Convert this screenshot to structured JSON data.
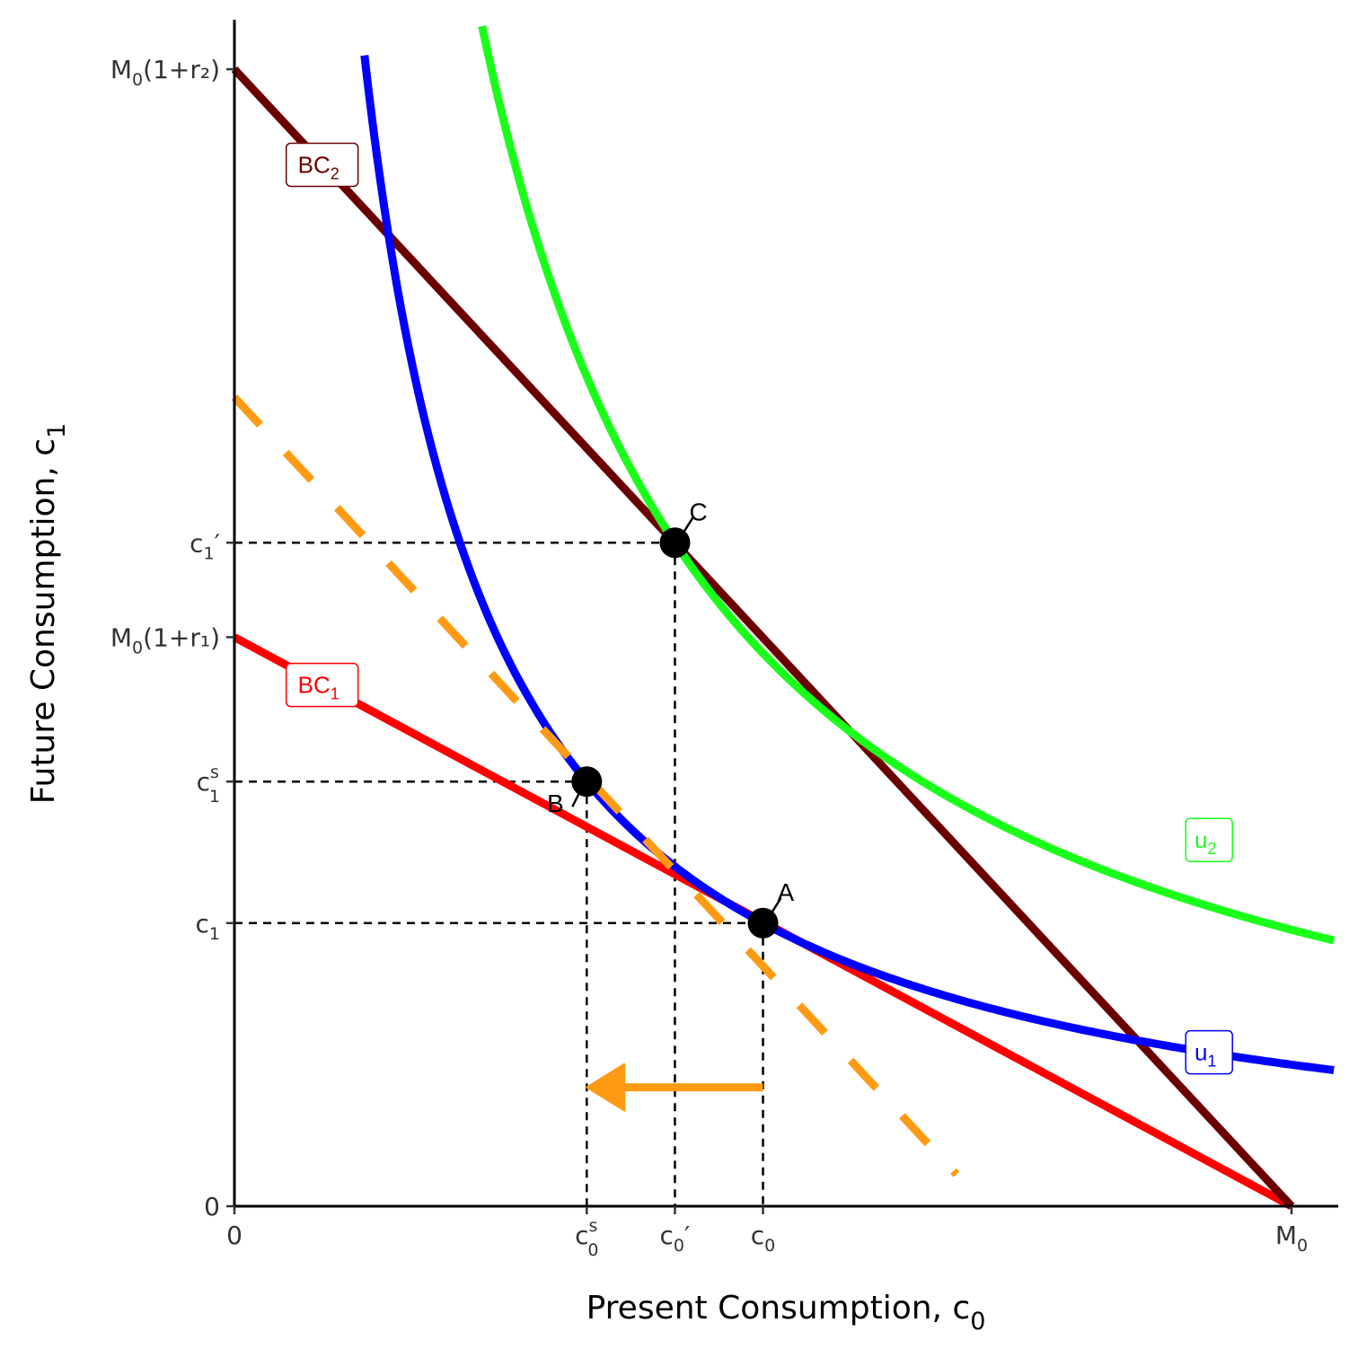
{
  "chart_data": {
    "type": "line",
    "title": "",
    "xlabel": {
      "main": "Present Consumption, c",
      "sub": "0"
    },
    "ylabel": {
      "main": "Future Consumption, c",
      "sub": "1"
    },
    "xlim": [
      0,
      100
    ],
    "ylim": [
      0,
      108
    ],
    "x_ticks": [
      {
        "value": 0,
        "main": "0",
        "sub": "",
        "sup": "",
        "post": ""
      },
      {
        "value": 33.33,
        "main": "c",
        "sub": "0",
        "sup": "s",
        "post": ""
      },
      {
        "value": 41.67,
        "main": "c",
        "sub": "0",
        "sup": "",
        "post": "′"
      },
      {
        "value": 50,
        "main": "c",
        "sub": "0",
        "sup": "",
        "post": ""
      },
      {
        "value": 100,
        "main": "M",
        "sub": "0",
        "sup": "",
        "post": ""
      }
    ],
    "y_ticks": [
      {
        "value": 0,
        "main": "0",
        "sub": "",
        "sup": "",
        "post": ""
      },
      {
        "value": 26.67,
        "main": "c",
        "sub": "1",
        "sup": "",
        "post": ""
      },
      {
        "value": 40,
        "main": "c",
        "sub": "1",
        "sup": "s",
        "post": ""
      },
      {
        "value": 53.6,
        "main": "M",
        "sub": "0",
        "sup": "",
        "post": "(1+r₁)"
      },
      {
        "value": 62.5,
        "main": "c",
        "sub": "1",
        "sup": "",
        "post": "′"
      },
      {
        "value": 107.1,
        "main": "M",
        "sub": "0",
        "sup": "",
        "post": "(1+r₂)"
      }
    ],
    "series": [
      {
        "name": "BC1",
        "color": "#ff0000",
        "points": [
          [
            0,
            53.6
          ],
          [
            100,
            0
          ]
        ]
      },
      {
        "name": "BC2",
        "color": "#6b0000",
        "points": [
          [
            0,
            107.1
          ],
          [
            100,
            0
          ]
        ]
      },
      {
        "name": "u1",
        "color": "#0000ff",
        "function": "1333.33/x",
        "domain": [
          12.3,
          104
        ]
      },
      {
        "name": "u2",
        "color": "#1aff1a",
        "function": "2604.2/x",
        "domain": [
          16.5,
          104
        ]
      },
      {
        "name": "",
        "color": "#ff9a13",
        "style": "dashed",
        "points": [
          [
            0,
            76.2
          ],
          [
            68.3,
            3
          ]
        ]
      }
    ],
    "points": [
      {
        "label": "A",
        "x": 50,
        "y": 26.67
      },
      {
        "label": "B",
        "x": 33.33,
        "y": 40
      },
      {
        "label": "C",
        "x": 41.67,
        "y": 62.5
      }
    ],
    "arrow": {
      "from": [
        50,
        11.2
      ],
      "to": [
        33.33,
        11.2
      ],
      "color": "#ff9a13"
    },
    "curve_labels": [
      {
        "main": "BC",
        "sub": "2",
        "color": "#6b0000",
        "x": 8.3,
        "y": 98.1
      },
      {
        "main": "BC",
        "sub": "1",
        "color": "#ff0000",
        "x": 8.3,
        "y": 49.1
      },
      {
        "main": "u",
        "sub": "2",
        "color": "#1aff1a",
        "x": 92.2,
        "y": 34.5
      },
      {
        "main": "u",
        "sub": "1",
        "color": "#0000ff",
        "x": 92.2,
        "y": 14.5
      }
    ],
    "grid": false,
    "legend": "none"
  }
}
